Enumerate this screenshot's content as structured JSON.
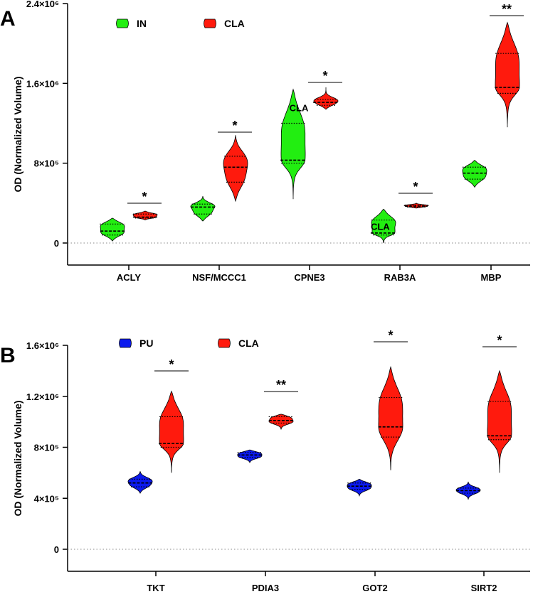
{
  "colors": {
    "IN": "#22ee11",
    "CLA": "#ff1a0d",
    "PU": "#0c1aee",
    "stroke": "#000000"
  },
  "chart_data": [
    {
      "panel_label": "A",
      "type": "violin",
      "ylabel": "OD (Normalized Volume)",
      "ylim": [
        0,
        2400000
      ],
      "yticks": [
        0,
        800000,
        1600000,
        2400000
      ],
      "ytick_labels": [
        "0",
        "8×10⁵",
        "1.6×10⁶",
        "2.4×10⁶"
      ],
      "categories": [
        "ACLY",
        "NSF/MCCC1",
        "CPNE3",
        "RAB3A",
        "MBP"
      ],
      "legend": [
        "IN",
        "CLA"
      ],
      "legend_placement": "top-left",
      "series": [
        {
          "name": "IN",
          "color_key": "IN",
          "violins": [
            {
              "min": 20000,
              "max": 250000,
              "q1": 80000,
              "median": 120000,
              "q3": 190000
            },
            {
              "min": 220000,
              "max": 470000,
              "q1": 290000,
              "median": 360000,
              "q3": 390000
            },
            {
              "min": 440000,
              "max": 1540000,
              "q1": 800000,
              "median": 830000,
              "q3": 1200000
            },
            {
              "min": 0,
              "max": 340000,
              "q1": 80000,
              "median": 100000,
              "q3": 230000
            },
            {
              "min": 560000,
              "max": 830000,
              "q1": 640000,
              "median": 700000,
              "q3": 760000
            }
          ]
        },
        {
          "name": "CLA",
          "color_key": "CLA",
          "violins": [
            {
              "min": 230000,
              "max": 320000,
              "q1": 250000,
              "median": 260000,
              "q3": 290000
            },
            {
              "min": 420000,
              "max": 1080000,
              "q1": 610000,
              "median": 760000,
              "q3": 870000
            },
            {
              "min": 1340000,
              "max": 1560000,
              "q1": 1380000,
              "median": 1410000,
              "q3": 1440000
            },
            {
              "min": 350000,
              "max": 400000,
              "q1": 360000,
              "median": 370000,
              "q3": 380000
            },
            {
              "min": 1160000,
              "max": 2210000,
              "q1": 1500000,
              "median": 1560000,
              "q3": 1900000
            }
          ]
        }
      ],
      "significance": [
        "*",
        "*",
        "*",
        "*",
        "**"
      ],
      "annotations": [
        {
          "text": "CLA",
          "x": 2,
          "y": 1320000
        },
        {
          "text": "CLA",
          "x": 2.9,
          "y": 130000
        }
      ]
    },
    {
      "panel_label": "B",
      "type": "violin",
      "ylabel": "OD (Normalized Volume)",
      "ylim": [
        0,
        1600000
      ],
      "yticks": [
        0,
        400000,
        800000,
        1200000,
        1600000
      ],
      "ytick_labels": [
        "0",
        "4×10⁵",
        "8×10⁵",
        "1.2×10⁶",
        "1.6×10⁶"
      ],
      "categories": [
        "TKT",
        "PDIA3",
        "GOT2",
        "SIRT2"
      ],
      "legend": [
        "PU",
        "CLA"
      ],
      "legend_placement": "top-left",
      "series": [
        {
          "name": "PU",
          "color_key": "PU",
          "violins": [
            {
              "min": 440000,
              "max": 610000,
              "q1": 490000,
              "median": 520000,
              "q3": 550000
            },
            {
              "min": 680000,
              "max": 780000,
              "q1": 720000,
              "median": 740000,
              "q3": 760000
            },
            {
              "min": 420000,
              "max": 550000,
              "q1": 470000,
              "median": 495000,
              "q3": 520000
            },
            {
              "min": 390000,
              "max": 530000,
              "q1": 440000,
              "median": 460000,
              "q3": 480000
            }
          ]
        },
        {
          "name": "CLA",
          "color_key": "CLA",
          "violins": [
            {
              "min": 600000,
              "max": 1240000,
              "q1": 800000,
              "median": 830000,
              "q3": 1040000
            },
            {
              "min": 940000,
              "max": 1060000,
              "q1": 990000,
              "median": 1010000,
              "q3": 1040000
            },
            {
              "min": 620000,
              "max": 1430000,
              "q1": 880000,
              "median": 960000,
              "q3": 1190000
            },
            {
              "min": 600000,
              "max": 1400000,
              "q1": 860000,
              "median": 890000,
              "q3": 1160000
            }
          ]
        }
      ],
      "significance": [
        "*",
        "**",
        "*",
        "*"
      ]
    }
  ]
}
